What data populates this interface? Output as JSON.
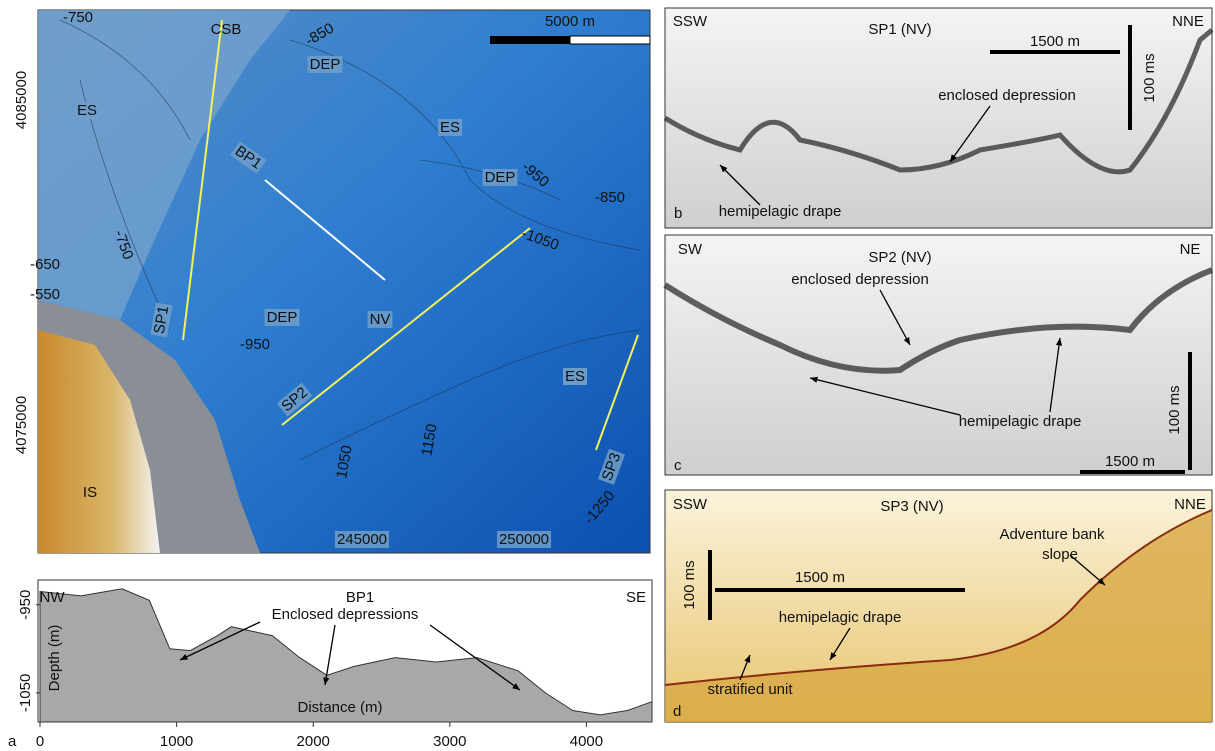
{
  "map": {
    "panel_letter": "a",
    "scale_bar": "5000 m",
    "northing_labels": [
      "4085000",
      "4075000"
    ],
    "easting_labels": [
      "245000",
      "250000"
    ],
    "labels": [
      "-750",
      "CSB",
      "-850",
      "DEP",
      "ES",
      "ES",
      "BP1",
      "DEP",
      "-950",
      "-850",
      "-750",
      "-1050",
      "-650",
      "-550",
      "DEP",
      "SP1",
      "NV",
      "-950",
      "ES",
      "ES",
      "SP2",
      "SP3",
      "1050",
      "1150",
      "-1250",
      "IS"
    ]
  },
  "chart_data": {
    "type": "area",
    "title": "BP1",
    "left_label": "NW",
    "right_label": "SE",
    "annotation": "Enclosed depressions",
    "xlabel": "Distance (m)",
    "ylabel": "Depth (m)",
    "x": [
      0,
      300,
      600,
      800,
      950,
      1100,
      1300,
      1400,
      1700,
      1900,
      2100,
      2300,
      2600,
      2900,
      3200,
      3500,
      3700,
      3900,
      4100,
      4300,
      4480
    ],
    "values": [
      -935,
      -940,
      -932,
      -945,
      -1000,
      -1002,
      -985,
      -975,
      -985,
      -1010,
      -1030,
      -1020,
      -1010,
      -1015,
      -1010,
      -1025,
      -1050,
      -1070,
      -1075,
      -1070,
      -1060
    ],
    "xlim": [
      0,
      4480
    ],
    "ylim": [
      -1083,
      -922
    ],
    "xticks": [
      0,
      1000,
      2000,
      3000,
      4000
    ],
    "yticks": [
      -950,
      -1050
    ],
    "color": "#a7a9a9"
  },
  "profiles": [
    {
      "letter": "b",
      "left": "SSW",
      "right": "NNE",
      "title": "SP1 (NV)",
      "horizontal_scale": "1500 m",
      "vertical_scale": "100 ms",
      "annotations": [
        "enclosed depression",
        "hemipelagic drape"
      ]
    },
    {
      "letter": "c",
      "left": "SW",
      "right": "NE",
      "title": "SP2 (NV)",
      "horizontal_scale": "1500 m",
      "vertical_scale": "100 ms",
      "annotations": [
        "enclosed depression",
        "hemipelagic drape"
      ]
    },
    {
      "letter": "d",
      "left": "SSW",
      "right": "NNE",
      "title": "SP3 (NV)",
      "horizontal_scale": "1500 m",
      "vertical_scale": "100 ms",
      "annotations": [
        "Adventure bank slope",
        "hemipelagic drape",
        "stratified unit"
      ]
    }
  ]
}
